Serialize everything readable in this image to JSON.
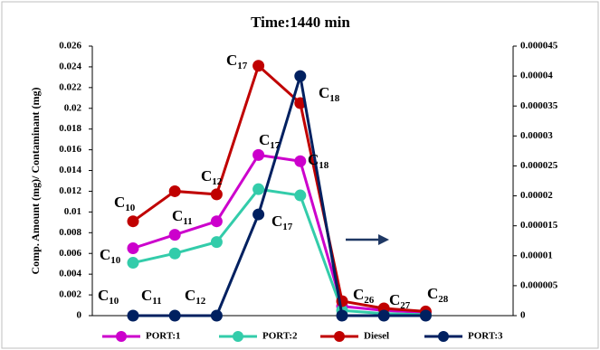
{
  "chart_data": {
    "type": "line",
    "title": "Time:1440 min",
    "y_label": "Comp. Amount (mg)/ Contaminant (mg)",
    "categories": [
      null,
      null,
      null,
      null,
      null,
      null,
      null,
      null
    ],
    "series": [
      {
        "name": "PORT:1",
        "color": "#cc00cc",
        "values": [
          0.0065,
          0.0078,
          0.0091,
          0.0155,
          0.0149,
          0.0009,
          0.0005,
          0.0003
        ]
      },
      {
        "name": "PORT:2",
        "color": "#33ccaa",
        "values": [
          0.0051,
          0.006,
          0.0071,
          0.0122,
          0.0116,
          0.0005,
          0.0002,
          0.0001
        ]
      },
      {
        "name": "Diesel",
        "color": "#c00000",
        "values": [
          0.0091,
          0.012,
          0.0117,
          0.0241,
          0.0205,
          0.0014,
          0.0007,
          0.0004
        ]
      },
      {
        "name": "PORT:3",
        "color": "#002060",
        "axis": "y2",
        "values": [
          0,
          0,
          0,
          1.69e-05,
          4e-05,
          0,
          0,
          0
        ]
      }
    ],
    "ylim": [
      0,
      0.026
    ],
    "yticks": [
      0,
      0.002,
      0.004,
      0.006,
      0.008,
      0.01,
      0.012,
      0.014,
      0.016,
      0.018,
      0.02,
      0.022,
      0.024,
      0.026
    ],
    "y2lim": [
      0,
      4.5e-05
    ],
    "y2ticks": [
      0,
      5e-06,
      1e-05,
      1.5e-05,
      2e-05,
      2.5e-05,
      3e-05,
      3.5e-05,
      4e-05,
      4.5e-05
    ],
    "grid": false,
    "legend": "bottom",
    "annotations": [
      {
        "text": "C",
        "sub": "10"
      },
      {
        "text": "C",
        "sub": "11"
      },
      {
        "text": "C",
        "sub": "12"
      },
      {
        "text": "C",
        "sub": "17"
      },
      {
        "text": "C",
        "sub": "18"
      },
      {
        "text": "C",
        "sub": "17"
      },
      {
        "text": "C",
        "sub": "18"
      },
      {
        "text": "C",
        "sub": "10"
      },
      {
        "text": "C",
        "sub": "17"
      },
      {
        "text": "C",
        "sub": "10"
      },
      {
        "text": "C",
        "sub": "11"
      },
      {
        "text": "C",
        "sub": "12"
      },
      {
        "text": "C",
        "sub": "26"
      },
      {
        "text": "C",
        "sub": "27"
      },
      {
        "text": "C",
        "sub": "28"
      }
    ]
  }
}
